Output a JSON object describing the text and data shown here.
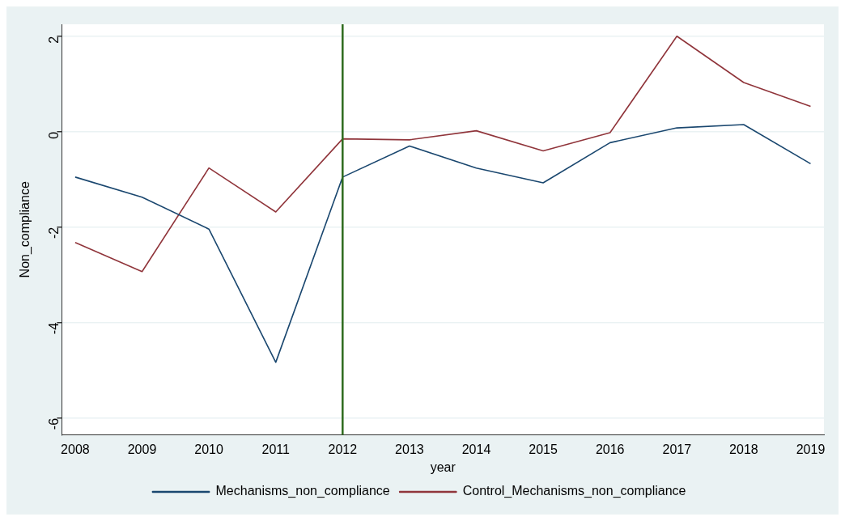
{
  "chart_data": {
    "type": "line",
    "xlabel": "year",
    "ylabel": "Non_compliance",
    "x": [
      2008,
      2009,
      2010,
      2011,
      2012,
      2013,
      2014,
      2015,
      2016,
      2017,
      2018,
      2019
    ],
    "series": [
      {
        "name": "Mechanisms_non_compliance",
        "color": "#1a476f",
        "values": [
          -0.95,
          -1.37,
          -2.04,
          -4.83,
          -0.95,
          -0.3,
          -0.76,
          -1.07,
          -0.23,
          0.08,
          0.15,
          -0.67
        ]
      },
      {
        "name": "Control_Mechanisms_non_compliance",
        "color": "#90353b",
        "values": [
          -2.32,
          -2.93,
          -0.76,
          -1.68,
          -0.15,
          -0.17,
          0.02,
          -0.4,
          -0.02,
          2.0,
          1.03,
          0.53
        ]
      }
    ],
    "xlim": [
      2007.8,
      2019.2
    ],
    "xticks": [
      2008,
      2009,
      2010,
      2011,
      2012,
      2013,
      2014,
      2015,
      2016,
      2017,
      2018,
      2019
    ],
    "ylim": [
      -6.35,
      2.25
    ],
    "yticks": [
      -6,
      -4,
      -2,
      0,
      2
    ],
    "ref_lines": [
      {
        "axis": "x",
        "value": 2012,
        "color": "#2e6b1e"
      }
    ],
    "grid": "y",
    "legend": "bottom",
    "marker": "none",
    "line_style": "solid"
  }
}
